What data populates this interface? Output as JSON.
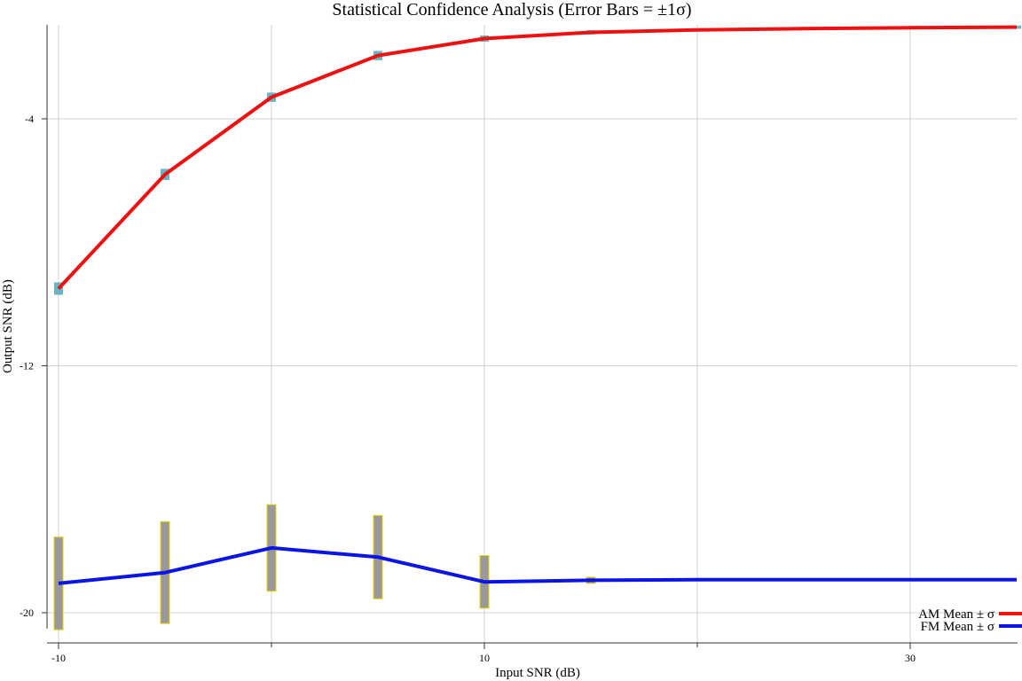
{
  "chart_data": {
    "type": "line",
    "title": "Statistical Confidence Analysis (Error Bars = ±1σ)",
    "xlabel": "Input SNR (dB)",
    "ylabel": "Output SNR (dB)",
    "xlim": [
      -10,
      35
    ],
    "ylim": [
      -20.5,
      0
    ],
    "xticks": [
      -10,
      10,
      30
    ],
    "minor_xticks": [
      0,
      20
    ],
    "yticks": [
      -20,
      -12,
      -4
    ],
    "grid": true,
    "legend_position": "bottom-right",
    "series": [
      {
        "name": "AM Mean ± σ",
        "color": "#ee1111",
        "error_color": "#4fa8b8",
        "x": [
          -10,
          -5,
          0,
          5,
          10,
          15,
          20,
          25,
          30,
          35
        ],
        "y": [
          -9.5,
          -5.8,
          -3.3,
          -1.95,
          -1.4,
          -1.2,
          -1.12,
          -1.08,
          -1.05,
          -1.03
        ],
        "sigma": [
          0.2,
          0.18,
          0.15,
          0.15,
          0.1,
          0.07,
          0.05,
          0.05,
          0.05,
          0.05
        ]
      },
      {
        "name": "FM Mean ± σ",
        "color": "#0a14e6",
        "error_color": "#999999",
        "error_edge": "#e6d200",
        "x": [
          -10,
          -5,
          0,
          5,
          10,
          15,
          20,
          25,
          30,
          35
        ],
        "y": [
          -19.05,
          -18.7,
          -17.9,
          -18.2,
          -19.0,
          -18.95,
          -18.93,
          -18.93,
          -18.93,
          -18.93
        ],
        "sigma": [
          1.5,
          1.65,
          1.4,
          1.35,
          0.85,
          0.1,
          0.0,
          0.0,
          0.0,
          0.0
        ]
      }
    ]
  }
}
